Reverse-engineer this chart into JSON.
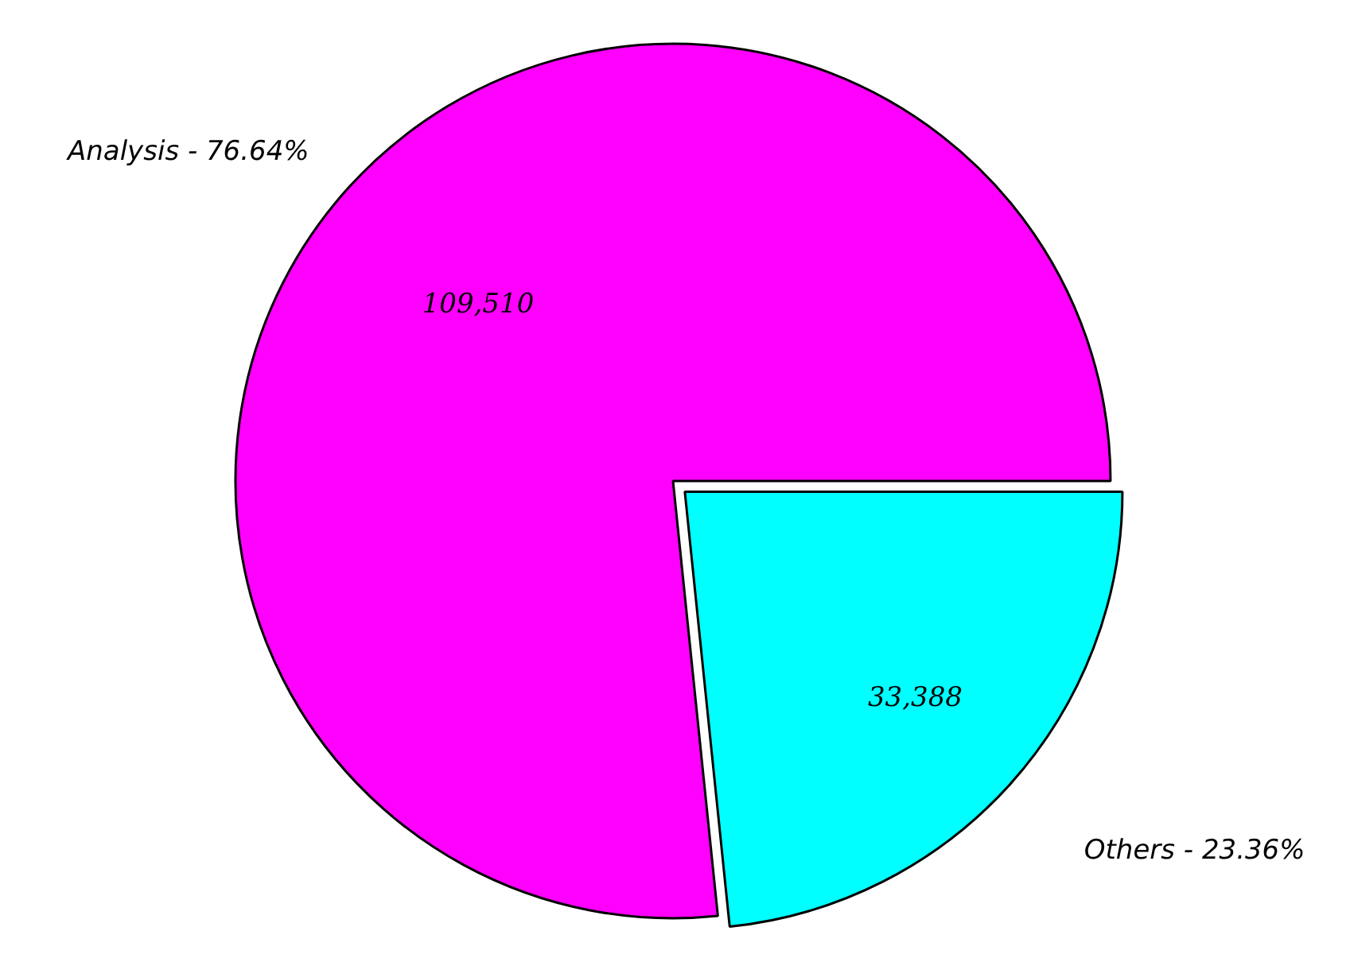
{
  "chart_data": {
    "type": "pie",
    "categories": [
      "Analysis - 76.64%",
      "Others - 23.36%"
    ],
    "values": [
      109510,
      33388
    ],
    "value_labels": [
      "109,510",
      "33,388"
    ],
    "colors": [
      "#ff00ff",
      "#00ffff"
    ],
    "legend": false
  }
}
